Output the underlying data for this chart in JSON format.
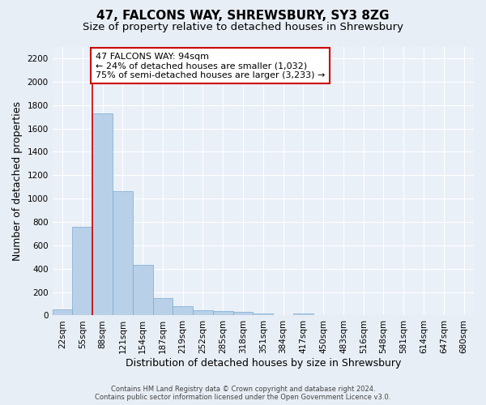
{
  "title": "47, FALCONS WAY, SHREWSBURY, SY3 8ZG",
  "subtitle": "Size of property relative to detached houses in Shrewsbury",
  "xlabel": "Distribution of detached houses by size in Shrewsbury",
  "ylabel": "Number of detached properties",
  "footer_line1": "Contains HM Land Registry data © Crown copyright and database right 2024.",
  "footer_line2": "Contains public sector information licensed under the Open Government Licence v3.0.",
  "bin_labels": [
    "22sqm",
    "55sqm",
    "88sqm",
    "121sqm",
    "154sqm",
    "187sqm",
    "219sqm",
    "252sqm",
    "285sqm",
    "318sqm",
    "351sqm",
    "384sqm",
    "417sqm",
    "450sqm",
    "483sqm",
    "516sqm",
    "548sqm",
    "581sqm",
    "614sqm",
    "647sqm",
    "680sqm"
  ],
  "bar_values": [
    55,
    760,
    1725,
    1060,
    430,
    148,
    82,
    45,
    40,
    30,
    20,
    0,
    18,
    0,
    0,
    0,
    0,
    0,
    0,
    0,
    0
  ],
  "bar_color": "#b8d0e8",
  "bar_edge_color": "#7aaad0",
  "annotation_box_text": "47 FALCONS WAY: 94sqm\n← 24% of detached houses are smaller (1,032)\n75% of semi-detached houses are larger (3,233) →",
  "annotation_box_color": "#ffffff",
  "annotation_box_edge_color": "#cc0000",
  "red_line_bin_index": 2,
  "ylim": [
    0,
    2300
  ],
  "yticks": [
    0,
    200,
    400,
    600,
    800,
    1000,
    1200,
    1400,
    1600,
    1800,
    2000,
    2200
  ],
  "background_color": "#e8eef5",
  "plot_bg_color": "#eaf0f8",
  "grid_color": "#ffffff",
  "title_fontsize": 11,
  "subtitle_fontsize": 9.5,
  "tick_fontsize": 7.5,
  "ylabel_fontsize": 9,
  "xlabel_fontsize": 9,
  "footer_fontsize": 6,
  "annotation_fontsize": 8
}
